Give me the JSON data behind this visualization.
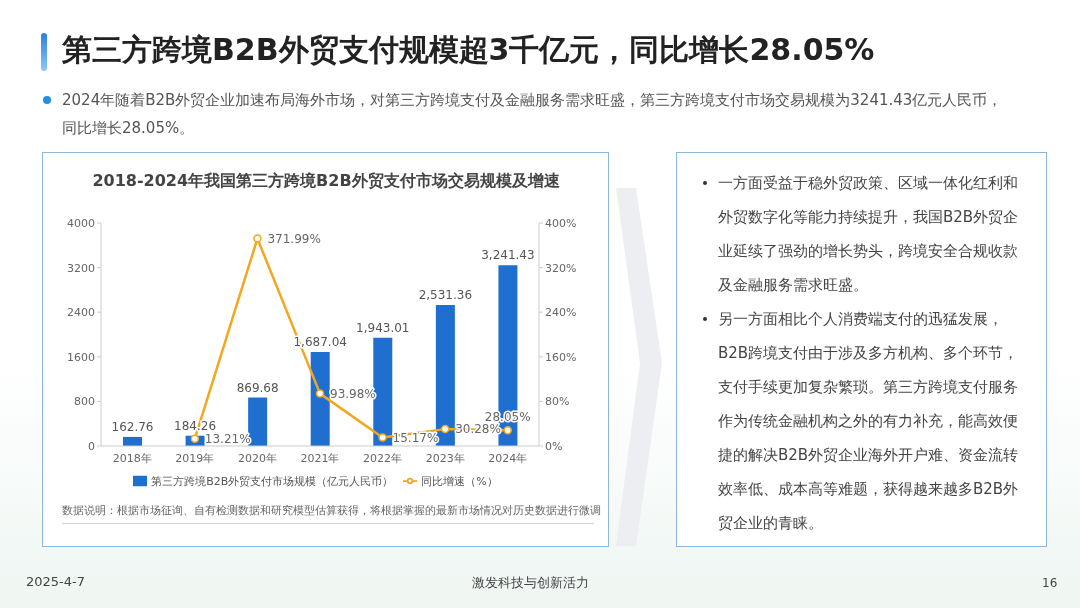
{
  "chart_data": {
    "type": "bar",
    "title": "2018-2024年我国第三方跨境B2B外贸支付市场交易规模及增速",
    "categories": [
      "2018年",
      "2019年",
      "2020年",
      "2021年",
      "2022年",
      "2023年",
      "2024年"
    ],
    "series": [
      {
        "name": "第三方跨境B2B外贸支付市场规模（亿元人民币）",
        "color": "#1f6fd0",
        "values": [
          162.76,
          184.26,
          869.68,
          1687.04,
          1943.01,
          2531.36,
          3241.43
        ],
        "value_labels": [
          "162.76",
          "184.26",
          "869.68",
          "1,687.04",
          "1,943.01",
          "2,531.36",
          "3,241.43"
        ]
      },
      {
        "name": "同比增速（%）",
        "type": "line",
        "axis": "y2",
        "color": "#f3a71f",
        "values": [
          null,
          13.21,
          371.99,
          93.98,
          15.17,
          30.28,
          28.05
        ],
        "value_labels": [
          null,
          "13.21%",
          "371.99%",
          "93.98%",
          "15.17%",
          "30.28%",
          "28.05%"
        ]
      }
    ],
    "ylim": [
      0,
      4000
    ],
    "yticks": [
      0,
      800,
      1600,
      2400,
      3200,
      4000
    ],
    "y2lim": [
      0,
      400
    ],
    "y2ticks": [
      {
        "value": 0,
        "label": "0%"
      },
      {
        "value": 80,
        "label": "80%"
      },
      {
        "value": 160,
        "label": "160%"
      },
      {
        "value": 240,
        "label": "240%"
      },
      {
        "value": 320,
        "label": "320%"
      },
      {
        "value": 400,
        "label": "400%"
      }
    ],
    "marker": "circle",
    "legend": "bottom",
    "annotations": [
      "第三方跨境B2B外贸支付规模超3千亿元，同比增长28.05%",
      "2024年随着B2B外贸企业加速布局海外市场，对第三方跨境支付及金融服务需求旺盛，第三方跨境支付市场交易规模为3241.43亿元人民币，同比增长28.05%。",
      "一方面受益于稳外贸政策、区域一体化红利和外贸数字化等能力持续提升，我国B2B外贸企业延续了强劲的增长势头，跨境安全合规收款及金融服务需求旺盛。",
      "另一方面相比个人消费端支付的迅猛发展，B2B跨境支付由于涉及多方机构、多个环节，支付手续更加复杂繁琐。第三方跨境支付服务作为传统金融机构之外的有力补充，能高效便捷的解决B2B外贸企业海外开户难、资金流转效率低、成本高等难题，获得越来越多B2B外贸企业的青睐。",
      "数据说明：根据市场征询、自有检测数据和研究模型估算获得，将根据掌握的最新市场情况对历史数据进行微调",
      "2025-4-7",
      "激发科技与创新活力",
      "16"
    ]
  }
}
